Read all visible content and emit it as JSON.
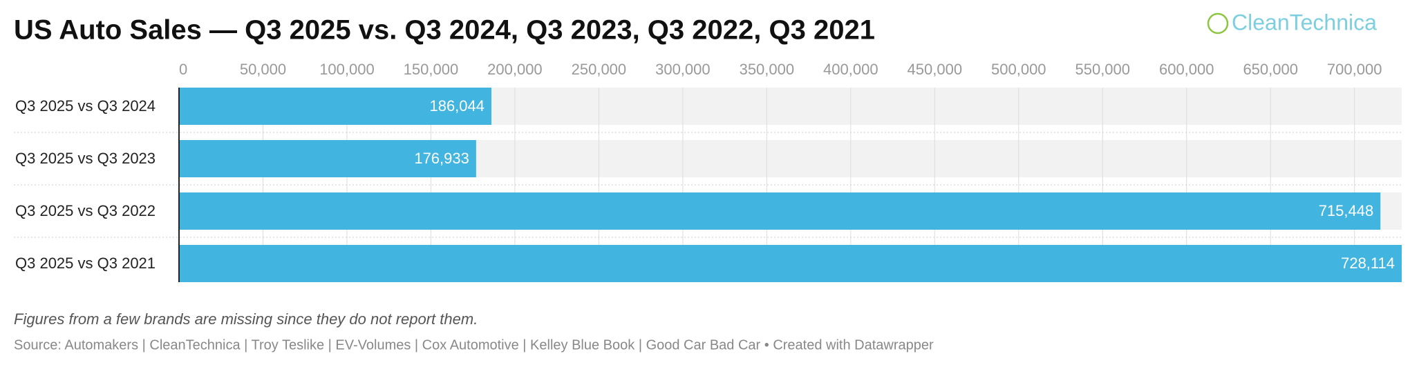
{
  "chart_data": {
    "type": "bar",
    "orientation": "horizontal",
    "title": "US Auto Sales — Q3 2025 vs. Q3 2024, Q3 2023, Q3 2022, Q3 2021",
    "logo": "CleanTechnica",
    "categories": [
      "Q3 2025 vs Q3 2024",
      "Q3 2025 vs Q3 2023",
      "Q3 2025 vs Q3 2022",
      "Q3 2025 vs Q3 2021"
    ],
    "values": [
      186044,
      176933,
      715448,
      728114
    ],
    "value_labels": [
      "186,044",
      "176,933",
      "715,448",
      "728,114"
    ],
    "color": "#41b4e0",
    "xlim": [
      0,
      728114
    ],
    "xticks": [
      0,
      {
        "value": 50000,
        "label": "50,000"
      },
      {
        "value": 100000,
        "label": "100,000"
      },
      {
        "value": 150000,
        "label": "150,000"
      },
      {
        "value": 200000,
        "label": "200,000"
      },
      {
        "value": 250000,
        "label": "250,000"
      },
      {
        "value": 300000,
        "label": "300,000"
      },
      {
        "value": 350000,
        "label": "350,000"
      },
      {
        "value": 400000,
        "label": "400,000"
      },
      {
        "value": 450000,
        "label": "450,000"
      },
      {
        "value": 500000,
        "label": "500,000"
      },
      {
        "value": 550000,
        "label": "550,000"
      },
      {
        "value": 600000,
        "label": "600,000"
      },
      {
        "value": 650000,
        "label": "650,000"
      },
      {
        "value": 700000,
        "label": "700,000"
      }
    ],
    "grid": true,
    "notes": "Figures from a few brands are missing since they do not report them.",
    "source": "Source: Automakers | CleanTechnica | Troy Teslike | EV-Volumes | Cox Automotive | Kelley Blue Book | Good Car Bad Car • Created with Datawrapper"
  }
}
